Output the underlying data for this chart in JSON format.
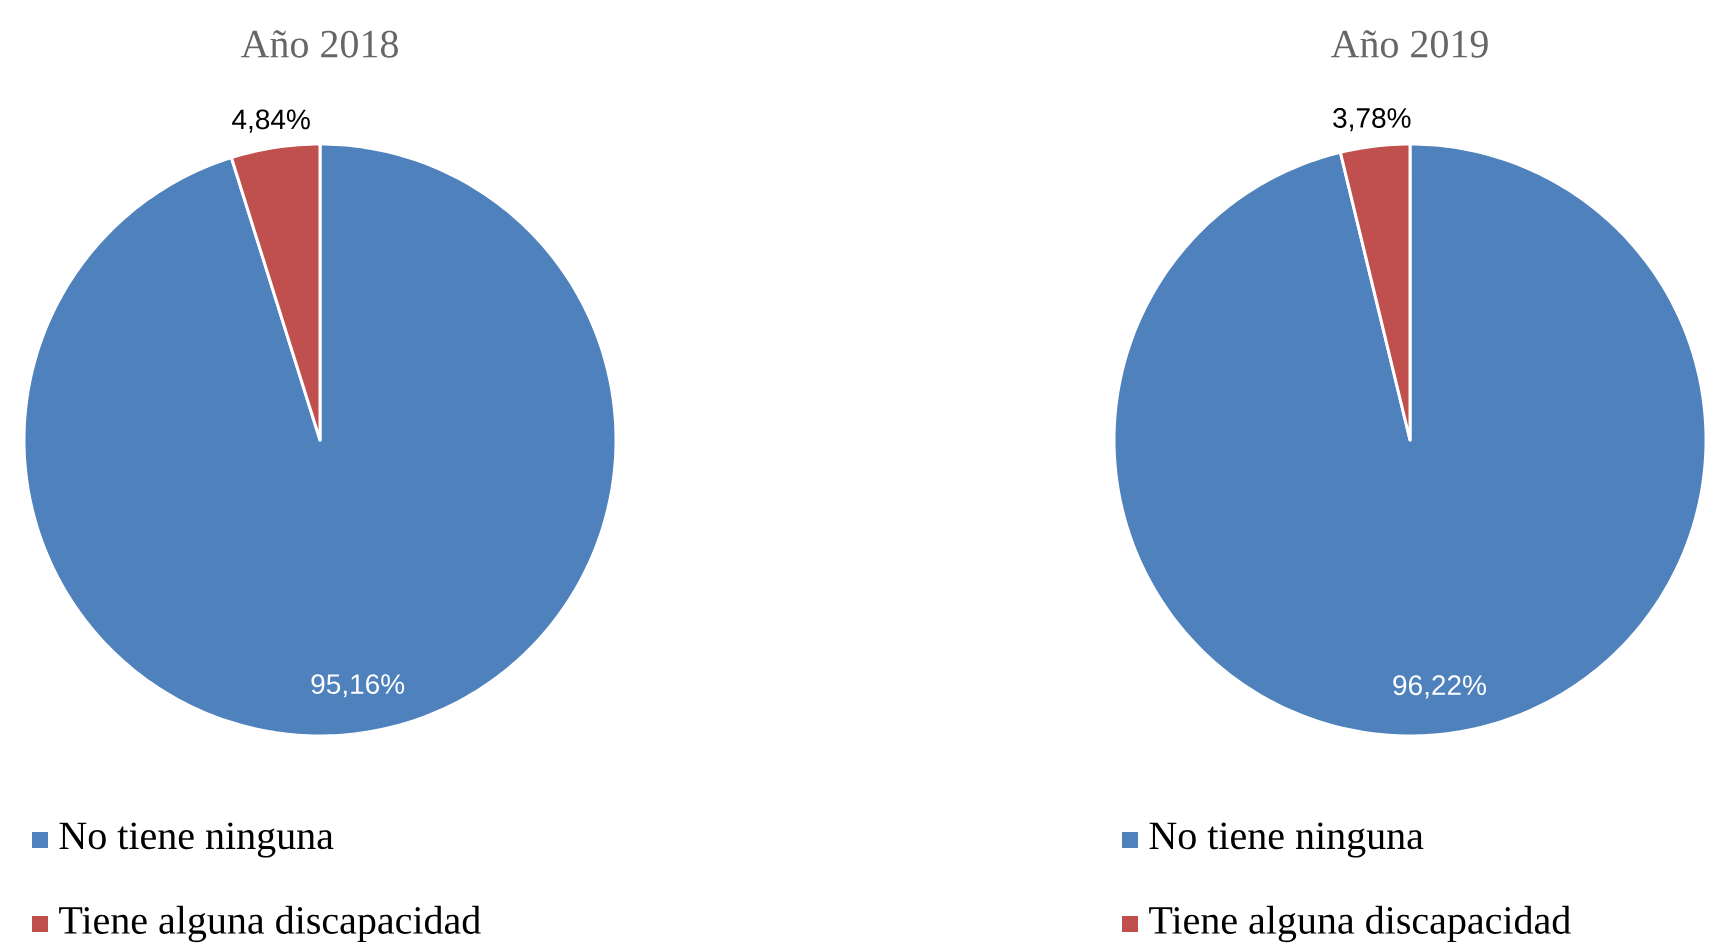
{
  "chart_data": [
    {
      "type": "pie",
      "title": "Año 2018",
      "categories": [
        "No tiene ninguna",
        "Tiene alguna discapacidad"
      ],
      "values": [
        95.16,
        4.84
      ],
      "colors": [
        "#4f81bd",
        "#c0504d"
      ],
      "value_labels": [
        "95,16%",
        "4,84%"
      ],
      "legend": "bottom"
    },
    {
      "type": "pie",
      "title": "Año 2019",
      "categories": [
        "No tiene ninguna",
        "Tiene alguna discapacidad"
      ],
      "values": [
        96.22,
        3.78
      ],
      "colors": [
        "#4f81bd",
        "#c0504d"
      ],
      "value_labels": [
        "96,22%",
        "3,78%"
      ],
      "legend": "bottom"
    }
  ]
}
